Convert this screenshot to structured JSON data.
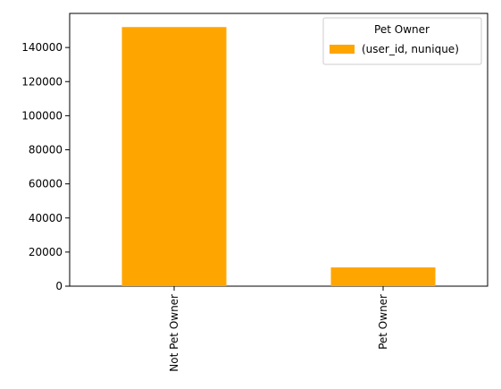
{
  "chart_data": {
    "type": "bar",
    "categories": [
      "Not Pet Owner",
      "Pet Owner"
    ],
    "series": [
      {
        "name": "(user_id, nunique)",
        "values": [
          152000,
          11000
        ],
        "color": "#FFA500"
      }
    ],
    "ylim": [
      0,
      160000
    ],
    "yticks": [
      0,
      20000,
      40000,
      60000,
      80000,
      100000,
      120000,
      140000
    ],
    "xlabel": "",
    "ylabel": "",
    "legend": {
      "title": "Pet Owner",
      "placement": "top-right"
    },
    "grid": false
  }
}
